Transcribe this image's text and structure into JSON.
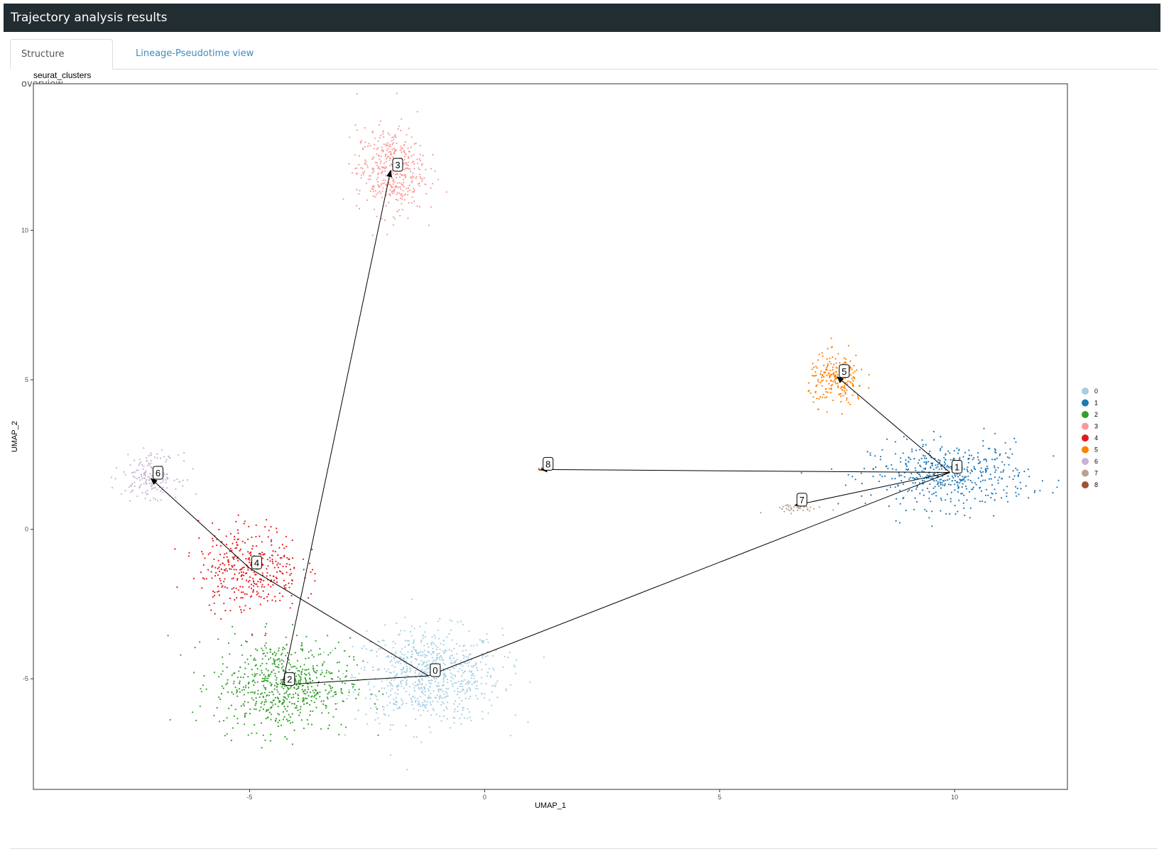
{
  "header": {
    "title": "Trajectory analysis results"
  },
  "tabs": [
    {
      "label": "Structure overview",
      "active": true
    },
    {
      "label": "Lineage-Pseudotime view",
      "active": false
    }
  ],
  "chart_data": {
    "type": "scatter",
    "title": "seurat_clusters",
    "xlabel": "UMAP_1",
    "ylabel": "UMAP_2",
    "xlim": [
      -9.6,
      12.4
    ],
    "ylim": [
      -8.7,
      14.9
    ],
    "x_ticks": [
      -5,
      0,
      5,
      10
    ],
    "y_ticks": [
      -5,
      0,
      5,
      10
    ],
    "x_tick_labels": [
      "-5",
      "0",
      "5",
      "10"
    ],
    "y_tick_labels": [
      "-5",
      "0",
      "5",
      "10"
    ],
    "grid": false,
    "legend_position": "right",
    "clusters": [
      {
        "name": "0",
        "color": "#a6cee3",
        "center": [
          -1.2,
          -4.9
        ],
        "spread": [
          1.3,
          1.3
        ],
        "n": 800
      },
      {
        "name": "1",
        "color": "#1f78b4",
        "center": [
          9.9,
          1.8
        ],
        "spread": [
          1.4,
          0.9
        ],
        "n": 500
      },
      {
        "name": "2",
        "color": "#33a02c",
        "center": [
          -4.3,
          -5.2
        ],
        "spread": [
          1.2,
          1.3
        ],
        "n": 650
      },
      {
        "name": "3",
        "color": "#fb9a99",
        "center": [
          -2.0,
          12.0
        ],
        "spread": [
          0.6,
          1.2
        ],
        "n": 420
      },
      {
        "name": "4",
        "color": "#e31a1c",
        "center": [
          -5.0,
          -1.3
        ],
        "spread": [
          0.9,
          1.2
        ],
        "n": 380
      },
      {
        "name": "5",
        "color": "#ff7f00",
        "center": [
          7.5,
          5.0
        ],
        "spread": [
          0.5,
          0.7
        ],
        "n": 220
      },
      {
        "name": "6",
        "color": "#cab2d6",
        "center": [
          -7.1,
          1.8
        ],
        "spread": [
          0.5,
          0.6
        ],
        "n": 180
      },
      {
        "name": "7",
        "color": "#b8a48e",
        "center": [
          6.6,
          0.7
        ],
        "spread": [
          0.5,
          0.12
        ],
        "n": 40
      },
      {
        "name": "8",
        "color": "#a0522d",
        "center": [
          1.2,
          2.0
        ],
        "spread": [
          0.06,
          0.05
        ],
        "n": 6
      }
    ],
    "legend_colors": [
      "#a6cee3",
      "#1f78b4",
      "#33a02c",
      "#fb9a99",
      "#e31a1c",
      "#ff7f00",
      "#cab2d6",
      "#b8a48e",
      "#a0522d"
    ],
    "lineage_nodes": [
      {
        "label": "0",
        "x": -1.2,
        "y": -4.9
      },
      {
        "label": "1",
        "x": 9.9,
        "y": 1.9
      },
      {
        "label": "2",
        "x": -4.3,
        "y": -5.2
      },
      {
        "label": "3",
        "x": -2.0,
        "y": 12.0
      },
      {
        "label": "4",
        "x": -5.0,
        "y": -1.3
      },
      {
        "label": "5",
        "x": 7.5,
        "y": 5.1
      },
      {
        "label": "6",
        "x": -7.1,
        "y": 1.7
      },
      {
        "label": "7",
        "x": 6.6,
        "y": 0.8
      },
      {
        "label": "8",
        "x": 1.2,
        "y": 2.0
      }
    ],
    "lineage_edges": [
      {
        "from": [
          -1.2,
          -4.9
        ],
        "to": [
          -4.3,
          -5.2
        ],
        "arrow": false
      },
      {
        "from": [
          -4.3,
          -5.2
        ],
        "to": [
          -2.0,
          12.0
        ],
        "arrow": true
      },
      {
        "from": [
          -1.2,
          -4.9
        ],
        "to": [
          -5.0,
          -1.3
        ],
        "arrow": false
      },
      {
        "from": [
          -5.0,
          -1.3
        ],
        "to": [
          -7.1,
          1.7
        ],
        "arrow": true
      },
      {
        "from": [
          -1.2,
          -4.9
        ],
        "to": [
          9.9,
          1.9
        ],
        "arrow": false
      },
      {
        "from": [
          9.9,
          1.9
        ],
        "to": [
          7.5,
          5.1
        ],
        "arrow": true
      },
      {
        "from": [
          9.9,
          1.9
        ],
        "to": [
          6.6,
          0.8
        ],
        "arrow": true
      },
      {
        "from": [
          9.9,
          1.9
        ],
        "to": [
          1.2,
          2.0
        ],
        "arrow": true
      }
    ]
  }
}
